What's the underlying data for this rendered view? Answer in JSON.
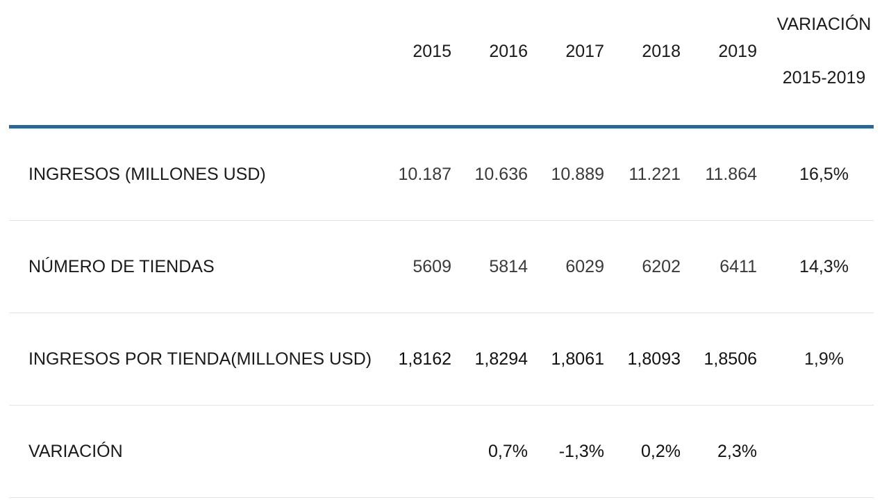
{
  "chart_data": {
    "type": "table",
    "header": {
      "years": [
        "2015",
        "2016",
        "2017",
        "2018",
        "2019"
      ],
      "variation_line1": "VARIACIÓN",
      "variation_line2": "2015-2019"
    },
    "rows": [
      {
        "label": "INGRESOS (MILLONES USD)",
        "values": [
          "10.187",
          "10.636",
          "10.889",
          "11.221",
          "11.864"
        ],
        "variation": "16,5%"
      },
      {
        "label": "NÚMERO DE TIENDAS",
        "values": [
          "5609",
          "5814",
          "6029",
          "6202",
          "6411"
        ],
        "variation": "14,3%"
      },
      {
        "label": "INGRESOS POR TIENDA(MILLONES USD)",
        "values": [
          "1,8162",
          "1,8294",
          "1,8061",
          "1,8093",
          "1,8506"
        ],
        "variation": "1,9%"
      },
      {
        "label": "VARIACIÓN",
        "values": [
          "",
          "0,7%",
          "-1,3%",
          "0,2%",
          "2,3%"
        ],
        "variation": ""
      }
    ]
  },
  "colors": {
    "header_rule": "#2c6698",
    "row_rule": "#e2e2e2",
    "text": "#1a1a1a"
  }
}
